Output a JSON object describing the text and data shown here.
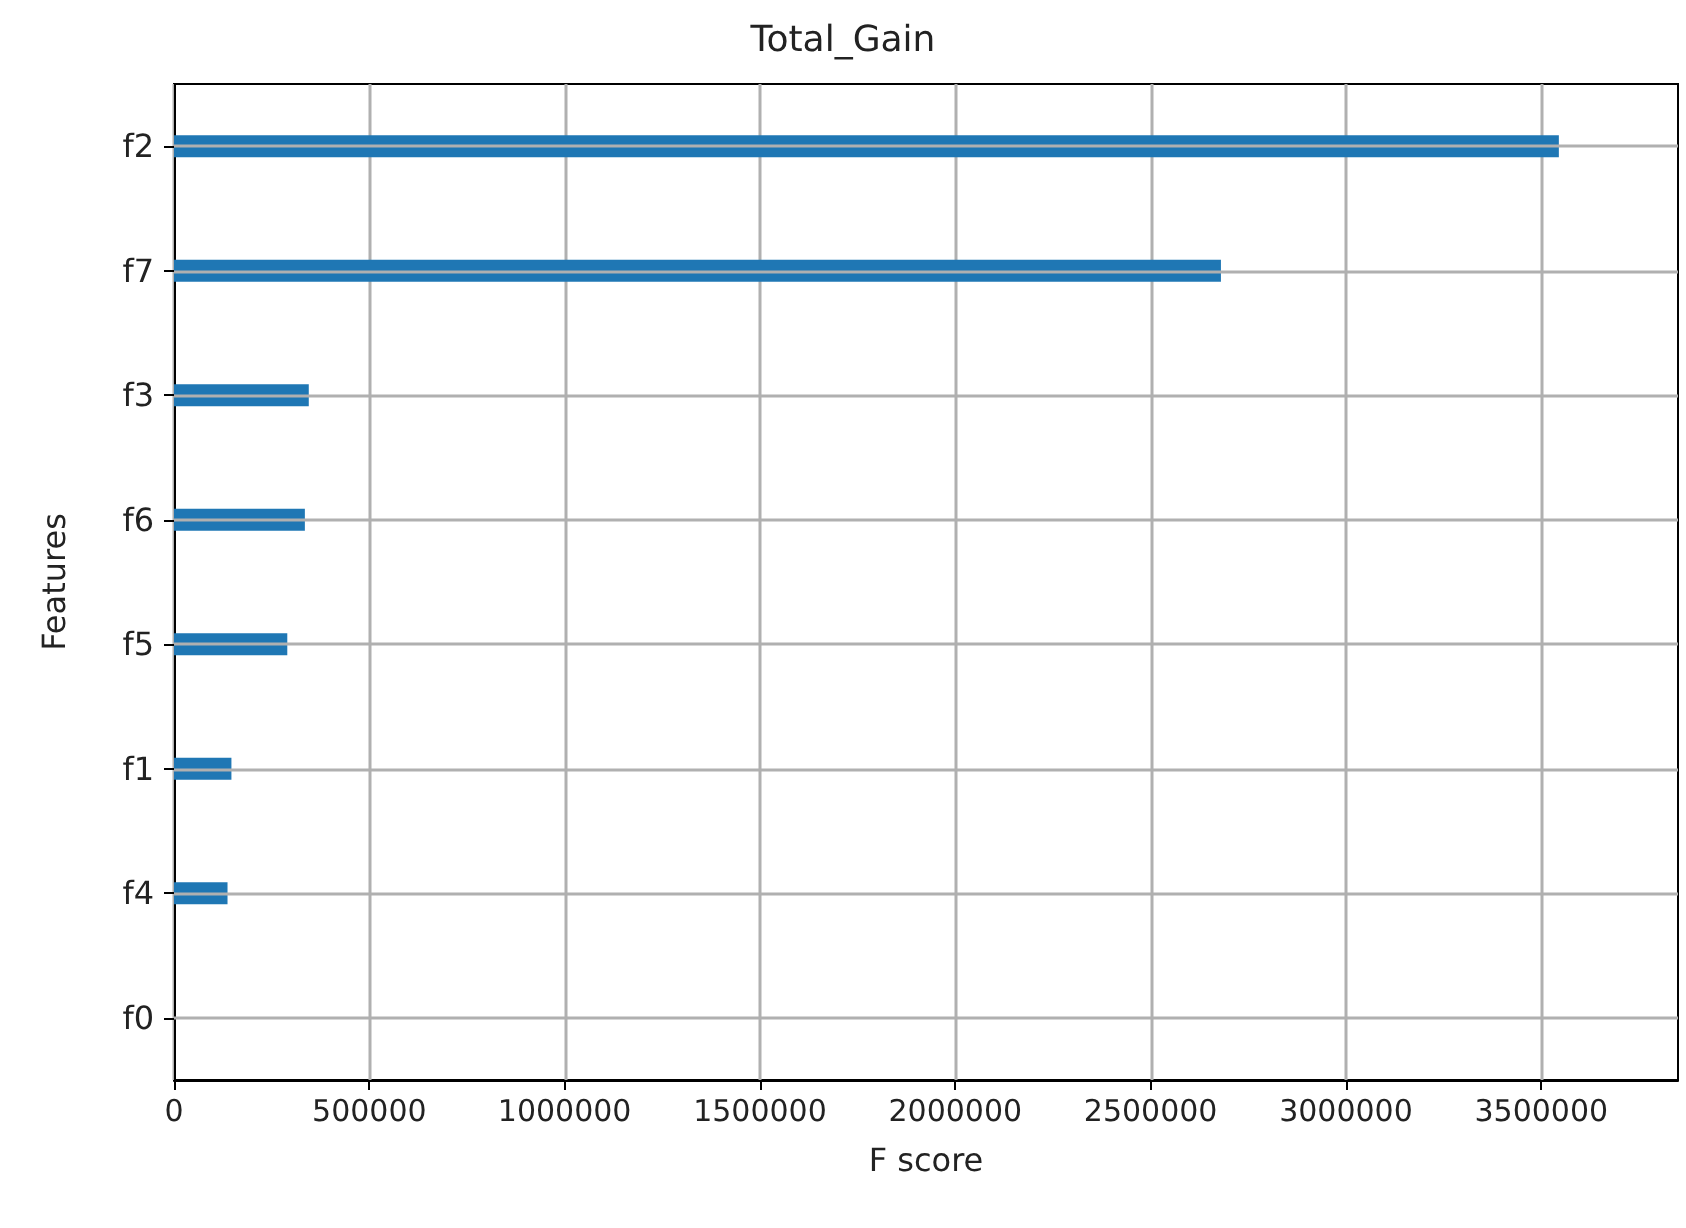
{
  "chart_data": {
    "type": "bar",
    "orientation": "horizontal",
    "title": "Total_Gain",
    "xlabel": "F score",
    "ylabel": "Features",
    "categories": [
      "f2",
      "f7",
      "f3",
      "f6",
      "f5",
      "f1",
      "f4",
      "f0"
    ],
    "values": [
      3545000,
      2680000,
      345000,
      335000,
      290000,
      147000,
      137000,
      0
    ],
    "color": "#1f77b4",
    "xlim": [
      0,
      3850000
    ],
    "xticks": [
      0,
      500000,
      1000000,
      1500000,
      2000000,
      2500000,
      3000000,
      3500000
    ],
    "grid": true
  }
}
